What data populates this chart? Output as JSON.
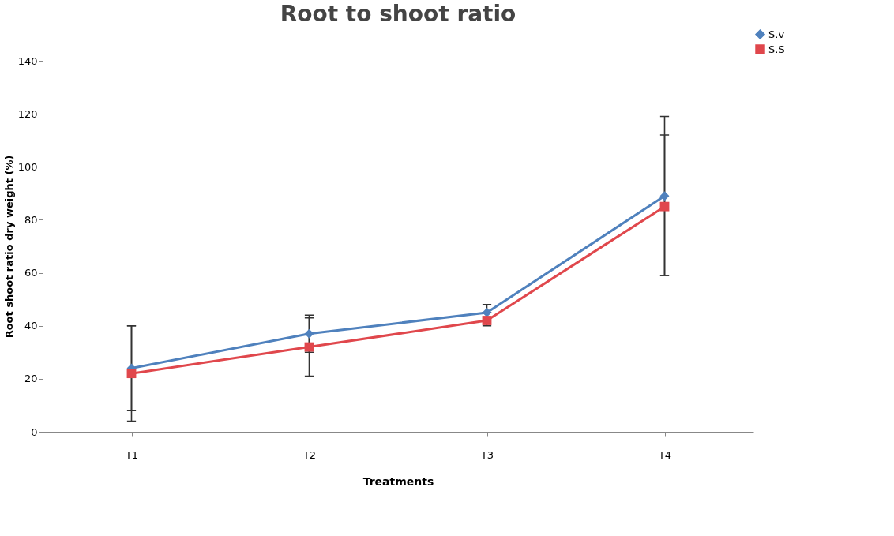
{
  "chart_data": {
    "type": "line",
    "title": "Root to shoot ratio",
    "xlabel": "Treatments",
    "ylabel": "Root shoot ratio dry weight (%)",
    "categories": [
      "T1",
      "T2",
      "T3",
      "T4"
    ],
    "series": [
      {
        "name": "S.v",
        "color": "#4f81bd",
        "marker": "diamond",
        "values": [
          24,
          37,
          45,
          89
        ],
        "errors": [
          [
            8,
            40
          ],
          [
            30,
            44
          ],
          [
            45,
            48
          ],
          [
            59,
            119
          ]
        ]
      },
      {
        "name": "S.S",
        "color": "#e0474c",
        "marker": "square",
        "values": [
          22,
          32,
          42,
          85
        ],
        "errors": [
          [
            4,
            40
          ],
          [
            21,
            43
          ],
          [
            40,
            45
          ],
          [
            59,
            112
          ]
        ]
      }
    ],
    "ylim": [
      0,
      140
    ],
    "yticks": [
      0,
      20,
      40,
      60,
      80,
      100,
      120,
      140
    ],
    "grid": false,
    "legend": "top right"
  }
}
